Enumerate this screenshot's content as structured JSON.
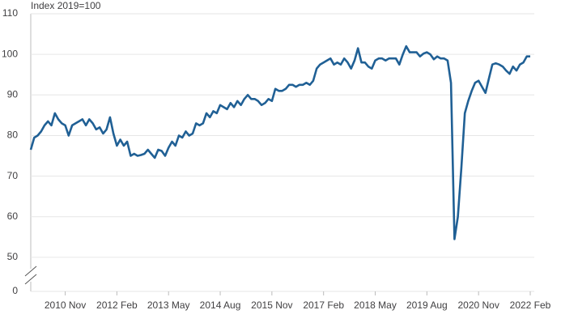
{
  "chart_data": {
    "type": "line",
    "title": "Index 2019=100",
    "categories": [
      null,
      null,
      null,
      null,
      null,
      null,
      null,
      null,
      null,
      null,
      "2010 Nov",
      null,
      null,
      null,
      null,
      null,
      null,
      null,
      null,
      null,
      null,
      null,
      null,
      null,
      null,
      "2012 Feb",
      null,
      null,
      null,
      null,
      null,
      null,
      null,
      null,
      null,
      null,
      null,
      null,
      null,
      null,
      "2013 May",
      null,
      null,
      null,
      null,
      null,
      null,
      null,
      null,
      null,
      null,
      null,
      null,
      null,
      null,
      "2014 Aug",
      null,
      null,
      null,
      null,
      null,
      null,
      null,
      null,
      null,
      null,
      null,
      null,
      null,
      null,
      "2015 Nov",
      null,
      null,
      null,
      null,
      null,
      null,
      null,
      null,
      null,
      null,
      null,
      null,
      null,
      null,
      "2017 Feb",
      null,
      null,
      null,
      null,
      null,
      null,
      null,
      null,
      null,
      null,
      null,
      null,
      null,
      null,
      "2018 May",
      null,
      null,
      null,
      null,
      null,
      null,
      null,
      null,
      null,
      null,
      null,
      null,
      null,
      null,
      "2019 Aug",
      null,
      null,
      null,
      null,
      null,
      null,
      null,
      null,
      null,
      null,
      null,
      null,
      null,
      null,
      "2020 Nov",
      null,
      null,
      null,
      null,
      null,
      null,
      null,
      null,
      null,
      null,
      null,
      null,
      null,
      null,
      "2022 Feb"
    ],
    "series": [
      {
        "color": "#206095",
        "values": [
          76.5,
          79.5,
          80,
          81,
          82.5,
          83.5,
          82.5,
          85.5,
          84,
          83,
          82.5,
          80,
          82.5,
          83,
          83.5,
          84,
          82.5,
          84,
          83,
          81.5,
          82,
          80.5,
          81.5,
          84.5,
          80.5,
          77.5,
          79,
          77.5,
          78.5,
          75,
          75.5,
          75,
          75.2,
          75.5,
          76.5,
          75.5,
          74.5,
          76.5,
          76.2,
          75,
          77,
          78.5,
          77.5,
          80,
          79.5,
          81,
          80,
          80.5,
          83,
          82.5,
          83,
          85.5,
          84.5,
          86,
          85.5,
          87.5,
          87,
          86.5,
          88,
          87,
          88.5,
          87.5,
          89,
          90,
          89,
          89,
          88.5,
          87.5,
          88,
          89,
          88.5,
          91.5,
          91,
          91,
          91.5,
          92.5,
          92.5,
          92,
          92.5,
          92.5,
          93,
          92.5,
          93.5,
          96.5,
          97.5,
          98,
          98.5,
          99,
          97.5,
          98,
          97.5,
          99,
          98,
          96.5,
          98.5,
          101.5,
          98,
          98,
          97,
          96.5,
          98.5,
          99,
          99,
          98.5,
          99,
          99,
          99,
          97.5,
          100,
          102,
          100.5,
          100.5,
          100.5,
          99.5,
          100.2,
          100.5,
          100,
          98.8,
          99.5,
          99,
          99,
          98.5,
          93,
          54.5,
          60,
          72,
          85.5,
          88.5,
          91,
          93,
          93.5,
          92,
          90.5,
          94,
          97.5,
          97.8,
          97.5,
          97,
          96,
          95.2,
          97,
          96,
          97.5,
          98,
          99.5,
          99.5
        ]
      }
    ],
    "ylim": [
      0,
      110
    ],
    "yticks": [
      0,
      50,
      60,
      70,
      80,
      90,
      100,
      110
    ],
    "axis_break": [
      0,
      45
    ],
    "grid": true
  }
}
